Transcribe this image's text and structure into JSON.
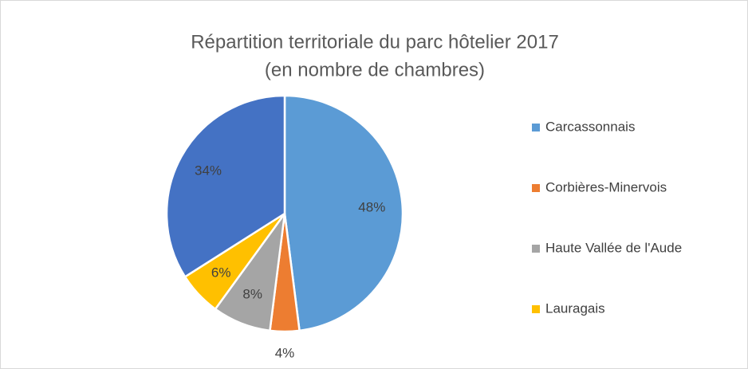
{
  "chart_data": {
    "type": "pie",
    "title": [
      "Répartition territoriale du parc hôtelier 2017",
      "(en nombre de chambres)"
    ],
    "categories": [
      "Carcassonnais",
      "Corbières-Minervois",
      "Haute Vallée de l'Aude",
      "Lauragais",
      null
    ],
    "values": [
      48,
      4,
      8,
      6,
      34
    ],
    "value_labels": [
      "48%",
      "4%",
      "8%",
      "6%",
      "34%"
    ],
    "colors": [
      "#5b9bd5",
      "#ed7d31",
      "#a5a5a5",
      "#ffc000",
      "#4472c4"
    ],
    "legend": "right"
  }
}
